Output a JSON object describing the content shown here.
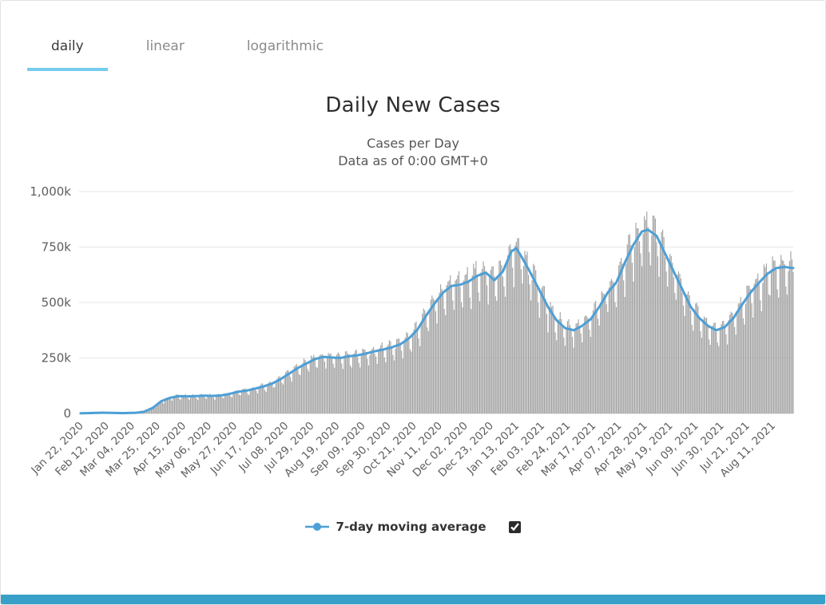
{
  "tabs": [
    {
      "label": "daily",
      "active": true
    },
    {
      "label": "linear",
      "active": false
    },
    {
      "label": "logarithmic",
      "active": false
    }
  ],
  "colors": {
    "accent_line": "#4d9fd6",
    "tab_underline": "#76cbee",
    "bar_fill": "#a4a4a4",
    "grid_line": "#e6e6e6",
    "axis_line": "#cccccc",
    "axis_text": "#5e5e5e",
    "title_text": "#2e2e2e",
    "bottom_bar": "#38a0c8"
  },
  "chart_data": {
    "type": "bar",
    "title": "Daily New Cases",
    "subtitle_line1": "Cases per Day",
    "subtitle_line2": "Data as of 0:00 GMT+0",
    "legend_label": "7-day moving average",
    "legend_checkbox_checked": true,
    "grid": true,
    "legend_position": "bottom-center",
    "ylim_k": [
      0,
      1000
    ],
    "ytick_values_k": [
      0,
      250,
      500,
      750,
      1000
    ],
    "ylabel_ticks": [
      "0",
      "250k",
      "500k",
      "750k",
      "1,000k"
    ],
    "x_tick_interval_days": 21,
    "total_days": 585,
    "x_tick_labels": [
      "Jan 22, 2020",
      "Feb 12, 2020",
      "Mar 04, 2020",
      "Mar 25, 2020",
      "Apr 15, 2020",
      "May 06, 2020",
      "May 27, 2020",
      "Jun 17, 2020",
      "Jul 08, 2020",
      "Jul 29, 2020",
      "Aug 19, 2020",
      "Sep 09, 2020",
      "Sep 30, 2020",
      "Oct 21, 2020",
      "Nov 11, 2020",
      "Dec 02, 2020",
      "Dec 23, 2020",
      "Jan 13, 2021",
      "Feb 03, 2021",
      "Feb 24, 2021",
      "Mar 17, 2021",
      "Apr 07, 2021",
      "Apr 28, 2021",
      "May 19, 2021",
      "Jun 09, 2021",
      "Jun 30, 2021",
      "Jul 21, 2021",
      "Aug 11, 2021"
    ],
    "series": [
      {
        "name": "Daily New Cases",
        "type": "bar",
        "note": "daily bars oscillate weekly around the 7-day moving average",
        "weekly_pattern": [
          1.07,
          1.09,
          1.08,
          1.0,
          0.88,
          0.8,
          1.0
        ]
      },
      {
        "name": "7-day moving average",
        "type": "line",
        "points_day_valueK": [
          [
            0,
            1
          ],
          [
            10,
            2
          ],
          [
            18,
            3.5
          ],
          [
            25,
            2.5
          ],
          [
            35,
            1.5
          ],
          [
            45,
            3
          ],
          [
            52,
            8
          ],
          [
            59,
            25
          ],
          [
            66,
            55
          ],
          [
            73,
            70
          ],
          [
            80,
            78
          ],
          [
            87,
            77
          ],
          [
            94,
            78
          ],
          [
            101,
            80
          ],
          [
            108,
            79
          ],
          [
            115,
            81
          ],
          [
            122,
            88
          ],
          [
            129,
            98
          ],
          [
            136,
            103
          ],
          [
            143,
            112
          ],
          [
            150,
            122
          ],
          [
            157,
            135
          ],
          [
            164,
            155
          ],
          [
            171,
            180
          ],
          [
            178,
            205
          ],
          [
            185,
            225
          ],
          [
            192,
            245
          ],
          [
            199,
            255
          ],
          [
            206,
            252
          ],
          [
            213,
            250
          ],
          [
            220,
            258
          ],
          [
            227,
            262
          ],
          [
            234,
            270
          ],
          [
            241,
            280
          ],
          [
            248,
            288
          ],
          [
            255,
            298
          ],
          [
            262,
            312
          ],
          [
            269,
            338
          ],
          [
            276,
            378
          ],
          [
            283,
            440
          ],
          [
            290,
            495
          ],
          [
            297,
            545
          ],
          [
            304,
            575
          ],
          [
            311,
            580
          ],
          [
            318,
            595
          ],
          [
            325,
            620
          ],
          [
            332,
            635
          ],
          [
            339,
            600
          ],
          [
            346,
            640
          ],
          [
            353,
            730
          ],
          [
            357,
            745
          ],
          [
            362,
            700
          ],
          [
            369,
            630
          ],
          [
            376,
            555
          ],
          [
            383,
            480
          ],
          [
            390,
            420
          ],
          [
            397,
            385
          ],
          [
            404,
            375
          ],
          [
            411,
            395
          ],
          [
            418,
            425
          ],
          [
            425,
            480
          ],
          [
            432,
            545
          ],
          [
            439,
            590
          ],
          [
            446,
            680
          ],
          [
            453,
            760
          ],
          [
            460,
            820
          ],
          [
            465,
            828
          ],
          [
            472,
            800
          ],
          [
            479,
            720
          ],
          [
            486,
            640
          ],
          [
            493,
            560
          ],
          [
            500,
            480
          ],
          [
            507,
            430
          ],
          [
            514,
            395
          ],
          [
            521,
            375
          ],
          [
            528,
            390
          ],
          [
            535,
            430
          ],
          [
            542,
            490
          ],
          [
            549,
            545
          ],
          [
            556,
            590
          ],
          [
            563,
            630
          ],
          [
            570,
            655
          ],
          [
            577,
            660
          ],
          [
            584,
            655
          ]
        ]
      }
    ]
  }
}
